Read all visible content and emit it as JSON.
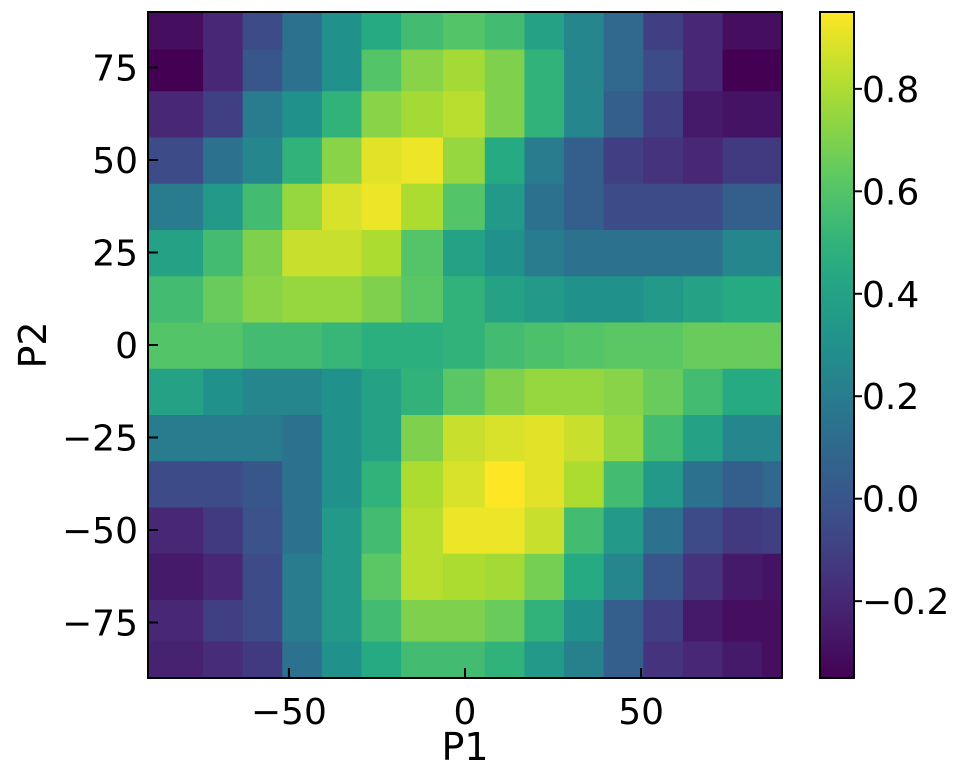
{
  "chart_data": {
    "type": "heatmap",
    "xlabel": "P1",
    "ylabel": "P2",
    "xlim": [
      -90,
      90
    ],
    "ylim": [
      -90,
      90
    ],
    "x_ticks": [
      -50,
      0,
      50
    ],
    "x_tick_labels": [
      "−50",
      "0",
      "50"
    ],
    "y_ticks": [
      -75,
      -50,
      -25,
      0,
      25,
      50,
      75
    ],
    "y_tick_labels": [
      "−75",
      "−50",
      "−25",
      "0",
      "25",
      "50",
      "75"
    ],
    "colorbar": {
      "range": [
        -0.35,
        0.95
      ],
      "ticks": [
        -0.2,
        0.0,
        0.2,
        0.4,
        0.6,
        0.8
      ],
      "tick_labels": [
        "−0.2",
        "0.0",
        "0.2",
        "0.4",
        "0.6",
        "0.8"
      ],
      "colormap": "viridis"
    },
    "x_centers": [
      -80,
      -68.75,
      -57.5,
      -46.25,
      -35,
      -23.75,
      -12.5,
      0,
      11.25,
      22.5,
      33.75,
      45,
      56.25,
      67.5,
      78.75,
      90
    ],
    "y_centers": [
      -85,
      -75,
      -62.5,
      -50,
      -37.5,
      -25,
      -12.5,
      0,
      12.5,
      25,
      37.5,
      50,
      62.5,
      75,
      85
    ],
    "values": [
      [
        -0.22,
        -0.18,
        -0.12,
        0.15,
        0.3,
        0.45,
        0.55,
        0.55,
        0.5,
        0.35,
        0.22,
        0.05,
        -0.15,
        -0.2,
        -0.25,
        -0.3
      ],
      [
        -0.2,
        -0.1,
        -0.05,
        0.2,
        0.35,
        0.55,
        0.7,
        0.7,
        0.65,
        0.5,
        0.3,
        0.05,
        -0.1,
        -0.25,
        -0.3,
        -0.3
      ],
      [
        -0.25,
        -0.2,
        -0.05,
        0.2,
        0.35,
        0.62,
        0.82,
        0.8,
        0.78,
        0.68,
        0.45,
        0.25,
        0.0,
        -0.15,
        -0.25,
        -0.28
      ],
      [
        -0.2,
        -0.12,
        -0.02,
        0.15,
        0.35,
        0.55,
        0.82,
        0.92,
        0.92,
        0.85,
        0.55,
        0.35,
        0.15,
        -0.05,
        -0.12,
        -0.1
      ],
      [
        -0.05,
        -0.05,
        0.0,
        0.15,
        0.3,
        0.5,
        0.8,
        0.88,
        0.95,
        0.9,
        0.8,
        0.55,
        0.35,
        0.15,
        0.05,
        0.1
      ],
      [
        0.2,
        0.2,
        0.2,
        0.15,
        0.3,
        0.4,
        0.7,
        0.85,
        0.88,
        0.9,
        0.85,
        0.75,
        0.55,
        0.4,
        0.25,
        0.25
      ],
      [
        0.4,
        0.3,
        0.25,
        0.25,
        0.3,
        0.4,
        0.5,
        0.62,
        0.7,
        0.75,
        0.75,
        0.72,
        0.65,
        0.55,
        0.45,
        0.45
      ],
      [
        0.6,
        0.6,
        0.55,
        0.55,
        0.52,
        0.48,
        0.48,
        0.5,
        0.55,
        0.58,
        0.6,
        0.62,
        0.62,
        0.65,
        0.65,
        0.65
      ],
      [
        0.55,
        0.65,
        0.72,
        0.75,
        0.75,
        0.7,
        0.62,
        0.5,
        0.4,
        0.35,
        0.3,
        0.3,
        0.35,
        0.4,
        0.45,
        0.45
      ],
      [
        0.4,
        0.55,
        0.7,
        0.85,
        0.85,
        0.8,
        0.6,
        0.4,
        0.3,
        0.2,
        0.15,
        0.15,
        0.15,
        0.15,
        0.25,
        0.25
      ],
      [
        0.2,
        0.35,
        0.55,
        0.75,
        0.88,
        0.92,
        0.8,
        0.6,
        0.35,
        0.15,
        0.05,
        -0.05,
        -0.05,
        -0.05,
        0.05,
        0.05
      ],
      [
        -0.05,
        0.15,
        0.25,
        0.5,
        0.72,
        0.9,
        0.92,
        0.75,
        0.45,
        0.2,
        0.05,
        -0.1,
        -0.15,
        -0.2,
        -0.12,
        -0.12
      ],
      [
        -0.2,
        -0.1,
        0.2,
        0.3,
        0.5,
        0.72,
        0.78,
        0.82,
        0.7,
        0.5,
        0.25,
        0.05,
        -0.1,
        -0.25,
        -0.28,
        -0.28
      ],
      [
        -0.35,
        -0.2,
        0.0,
        0.15,
        0.3,
        0.6,
        0.72,
        0.78,
        0.7,
        0.5,
        0.25,
        0.1,
        -0.05,
        -0.2,
        -0.35,
        -0.35
      ],
      [
        -0.3,
        -0.2,
        -0.05,
        0.15,
        0.3,
        0.45,
        0.55,
        0.6,
        0.55,
        0.4,
        0.25,
        0.1,
        -0.1,
        -0.2,
        -0.3,
        -0.3
      ]
    ]
  }
}
